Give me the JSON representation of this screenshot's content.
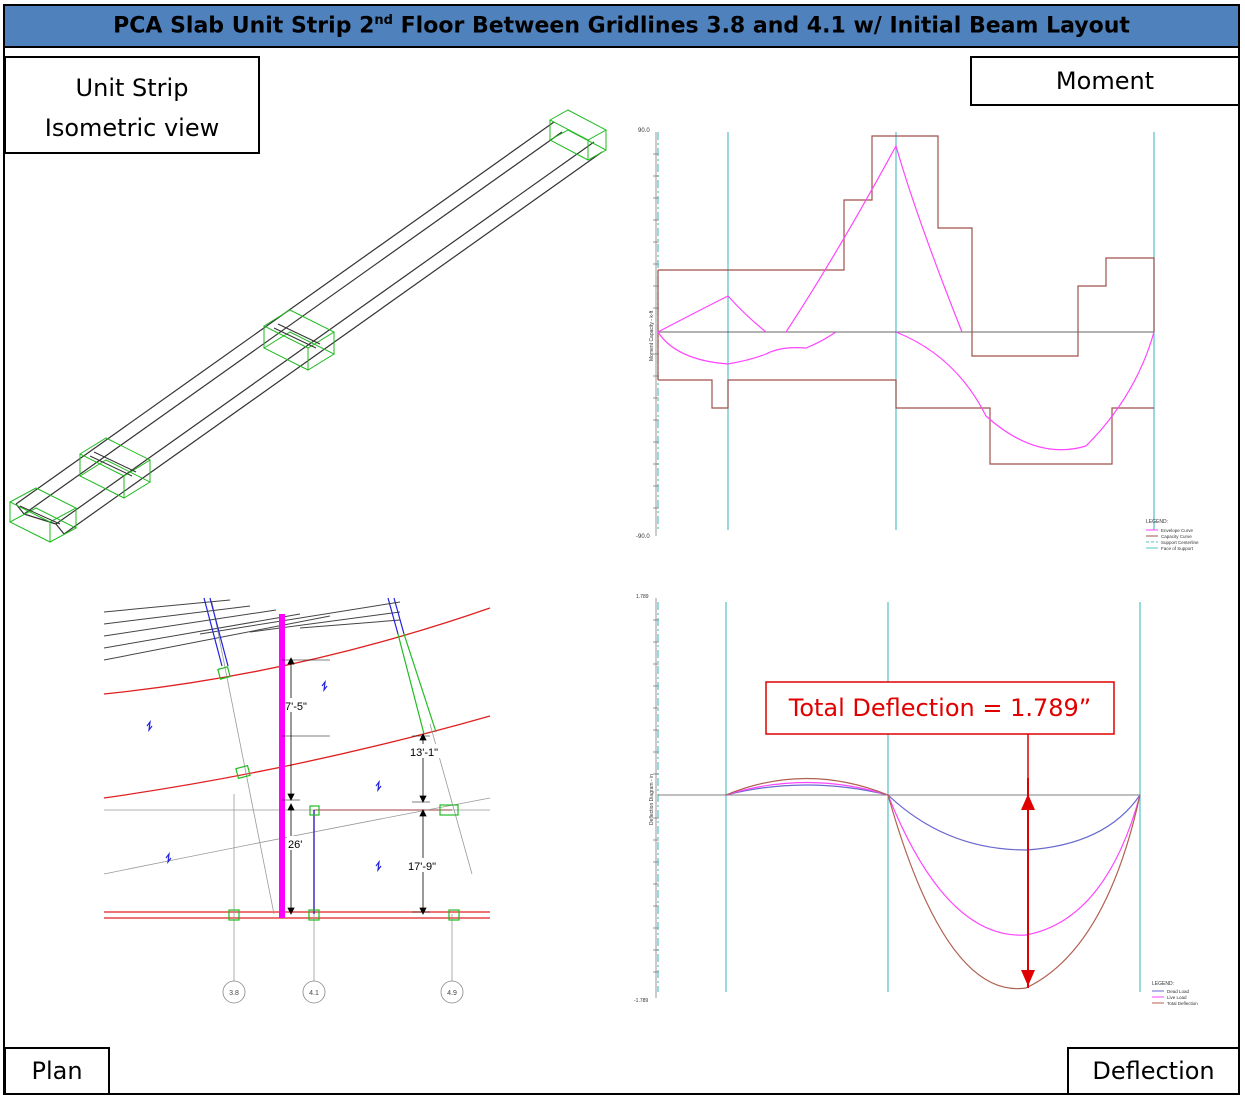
{
  "title": {
    "prefix": "PCA Slab Unit Strip 2",
    "superscript": "nd",
    "suffix": " Floor Between Gridlines 3.8 and 4.1 w/ Initial Beam Layout"
  },
  "labels": {
    "unit_strip_line1": "Unit Strip",
    "unit_strip_line2": "Isometric view",
    "moment": "Moment",
    "plan": "Plan",
    "deflection": "Deflection"
  },
  "moment_chart": {
    "axis_label": "Moment Capacity - k-ft",
    "top_tick": "90.0",
    "bottom_tick": "-90.0",
    "legend_title": "LEGEND:",
    "legend": [
      "Envelope Curve",
      "Capacity Curve",
      "Support Centerline",
      "Face of Support"
    ],
    "colors": {
      "envelope": "#ff44ff",
      "capacity": "#a0524a",
      "support": "#55c0c8",
      "zero": "#000000"
    }
  },
  "deflection_chart": {
    "axis_label": "Deflection Diagram - in",
    "top_tick": "1.789",
    "bottom_tick": "-1.789",
    "callout": "Total Deflection = 1.789”",
    "legend_title": "LEGEND:",
    "legend": [
      "Dead Load",
      "Live Load",
      "Total Deflection"
    ],
    "colors": {
      "dead": "#6a6ad0",
      "live": "#ff44ff",
      "total": "#b06050",
      "callout": "#e00000"
    }
  },
  "plan": {
    "dimensions": [
      "7'-5\"",
      "13'-1\"",
      "26'",
      "17'-9\""
    ],
    "gridlines": [
      "3.8",
      "4.1",
      "4.9"
    ],
    "colors": {
      "beam": "#e02020",
      "strip": "#ff00ff",
      "column": "#22bb22",
      "wall": "#2222dd"
    }
  }
}
